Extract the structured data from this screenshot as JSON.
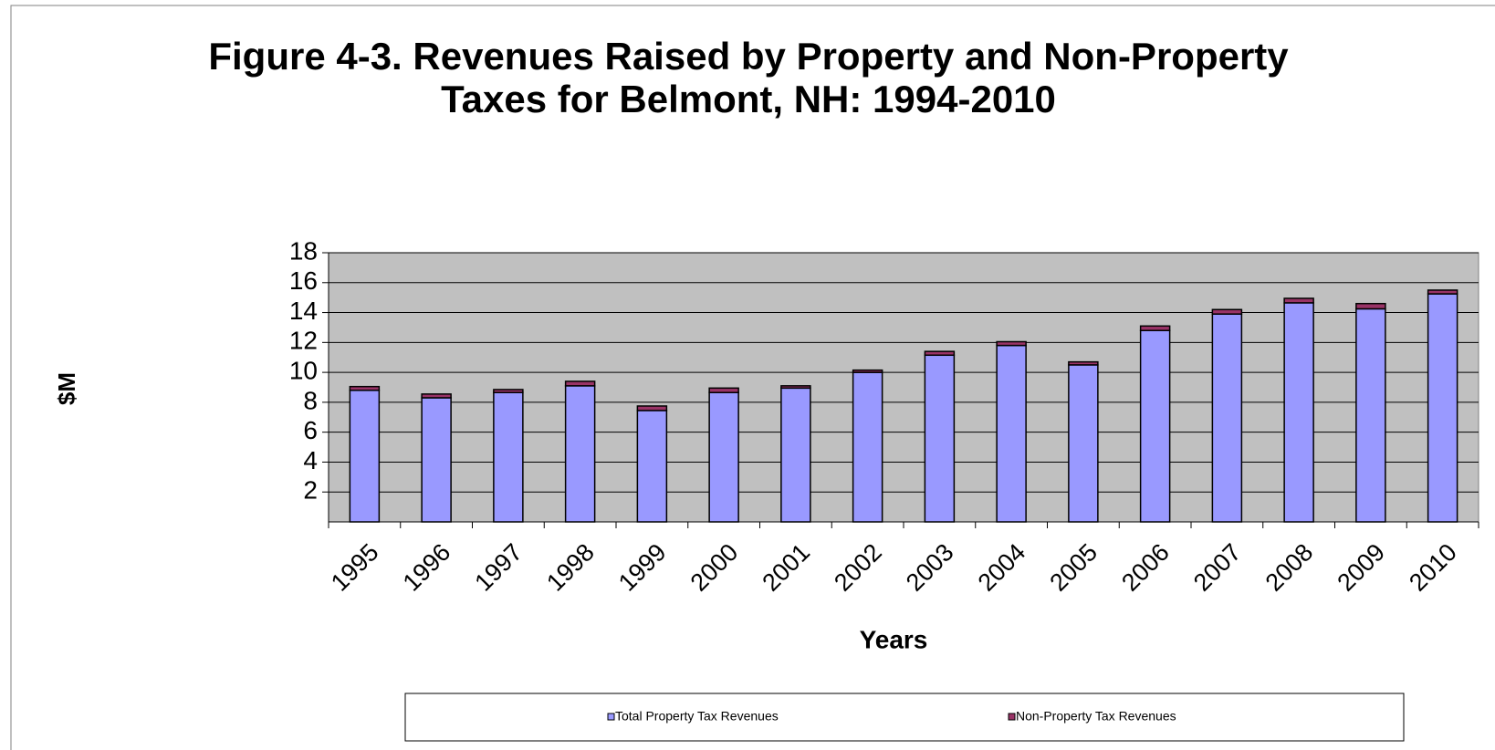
{
  "chart_data": {
    "type": "stacked_bar",
    "title": [
      "Figure 4-3. Revenues Raised by Property and Non-Property",
      "Taxes for Belmont, NH: 1994-2010"
    ],
    "y_label": "$M",
    "x_label": "Years",
    "categories": [
      "1995",
      "1996",
      "1997",
      "1998",
      "1999",
      "2000",
      "2001",
      "2002",
      "2003",
      "2004",
      "2005",
      "2006",
      "2007",
      "2008",
      "2009",
      "2010"
    ],
    "series": [
      {
        "name": "Total Property Tax Revenues",
        "color": "#9999ff",
        "values": [
          8.8,
          8.3,
          8.65,
          9.1,
          7.45,
          8.65,
          8.95,
          10.0,
          11.15,
          11.8,
          10.5,
          12.8,
          13.9,
          14.65,
          14.25,
          15.25
        ]
      },
      {
        "name": "Non-Property Tax Revenues",
        "color": "#993366",
        "values": [
          0.25,
          0.25,
          0.2,
          0.3,
          0.3,
          0.3,
          0.15,
          0.15,
          0.25,
          0.25,
          0.2,
          0.3,
          0.3,
          0.3,
          0.35,
          0.25
        ]
      }
    ],
    "ylim": [
      0,
      18
    ],
    "yticks": [
      2,
      4,
      6,
      8,
      10,
      12,
      14,
      16,
      18
    ],
    "grid": true,
    "legend": "bottom"
  }
}
